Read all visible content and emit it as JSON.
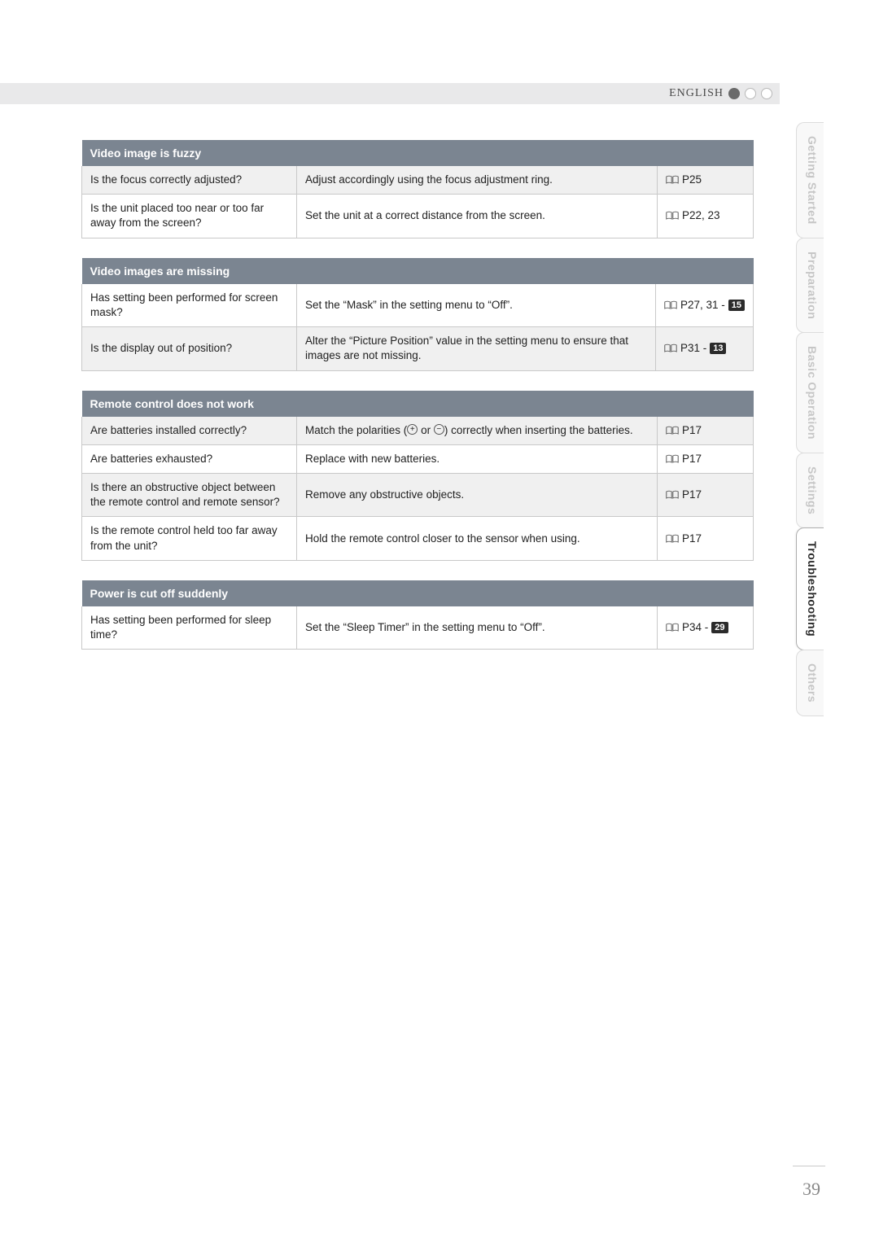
{
  "colors": {
    "header_bg": "#7b8591",
    "row_alt_bg": "#f0f0f0",
    "dot_filled": "#6a6a6a",
    "dot_empty_border": "#b8b8b8"
  },
  "lang_label": "ENGLISH",
  "page_number": "39",
  "side_tabs": [
    {
      "label": "Getting Started",
      "active": false
    },
    {
      "label": "Preparation",
      "active": false
    },
    {
      "label": "Basic Operation",
      "active": false
    },
    {
      "label": "Settings",
      "active": false
    },
    {
      "label": "Troubleshooting",
      "active": true
    },
    {
      "label": "Others",
      "active": false
    }
  ],
  "sections": [
    {
      "title": "Video image is fuzzy",
      "rows": [
        {
          "alt": true,
          "q": "Is the focus correctly adjusted?",
          "a": "Adjust accordingly using the focus adjustment ring.",
          "ref_prefix": "P25",
          "badge": null
        },
        {
          "alt": false,
          "q": "Is the unit placed too near or too far away from the screen?",
          "a": "Set the unit at a correct distance from the screen.",
          "ref_prefix": "P22, 23",
          "badge": null
        }
      ]
    },
    {
      "title": "Video images are missing",
      "rows": [
        {
          "alt": false,
          "q": "Has setting been performed for screen mask?",
          "a": "Set the “Mask” in the setting menu to “Off”.",
          "ref_prefix": "P27, 31 - ",
          "badge": "15"
        },
        {
          "alt": true,
          "q": "Is the display out of position?",
          "a": "Alter the “Picture Position” value in the setting menu to ensure that images are not missing.",
          "ref_prefix": "P31 - ",
          "badge": "13"
        }
      ]
    },
    {
      "title": "Remote control does not work",
      "rows": [
        {
          "alt": true,
          "q": "Are batteries installed correctly?",
          "a_html": true,
          "a": "Match the polarities ({PLUS} or {MINUS}) correctly when inserting the batteries.",
          "ref_prefix": "P17",
          "badge": null
        },
        {
          "alt": false,
          "q": "Are batteries exhausted?",
          "a": "Replace with new batteries.",
          "ref_prefix": "P17",
          "badge": null
        },
        {
          "alt": true,
          "q": "Is there an obstructive object between the remote control and remote sensor?",
          "a": "Remove any obstructive objects.",
          "ref_prefix": "P17",
          "badge": null
        },
        {
          "alt": false,
          "q": "Is the remote control held too far away from the unit?",
          "a": "Hold the remote control closer to the sensor when using.",
          "ref_prefix": "P17",
          "badge": null
        }
      ]
    },
    {
      "title": "Power is cut off suddenly",
      "rows": [
        {
          "alt": false,
          "q": "Has setting been performed for sleep time?",
          "a": "Set the “Sleep Timer” in the setting menu to “Off”.",
          "ref_prefix": "P34 - ",
          "badge": "29"
        }
      ]
    }
  ]
}
